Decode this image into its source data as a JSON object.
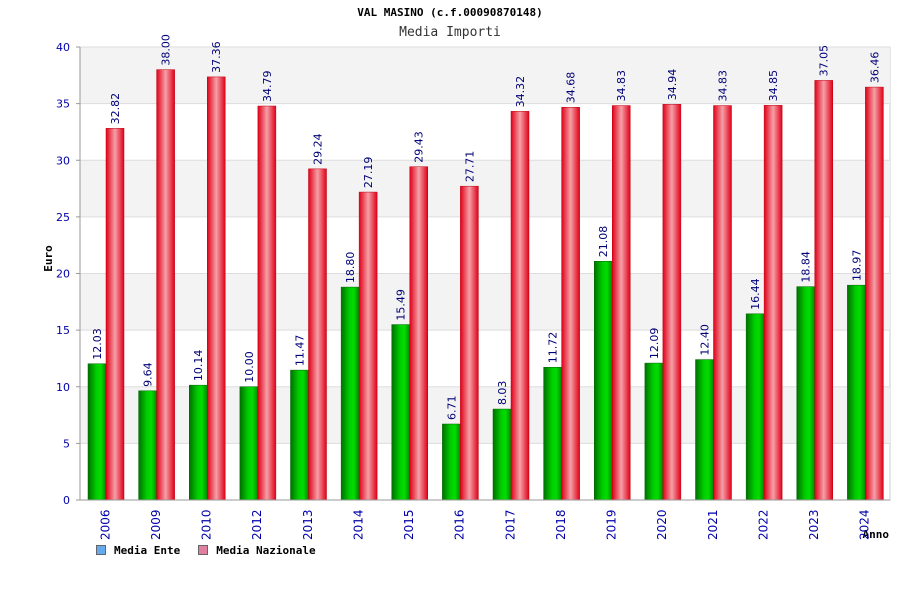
{
  "chart_data": {
    "type": "bar",
    "title": "VAL MASINO (c.f.00090870148)",
    "subtitle": "Media Importi",
    "xlabel": "Anno",
    "ylabel": "Euro",
    "ylim": [
      0,
      40
    ],
    "yticks": [
      0,
      5,
      10,
      15,
      20,
      25,
      30,
      35,
      40
    ],
    "grid": true,
    "legend_position": "bottom-left",
    "categories": [
      "2006",
      "2009",
      "2010",
      "2012",
      "2013",
      "2014",
      "2015",
      "2016",
      "2017",
      "2018",
      "2019",
      "2020",
      "2021",
      "2022",
      "2023",
      "2024"
    ],
    "series": [
      {
        "name": "Media Ente",
        "color": "#00a000",
        "legend_color": "#66aaee",
        "values": [
          12.03,
          9.64,
          10.14,
          10.0,
          11.47,
          18.8,
          15.49,
          6.71,
          8.03,
          11.72,
          21.08,
          12.09,
          12.4,
          16.44,
          18.84,
          18.97
        ],
        "labels": [
          "12.03",
          "9.64",
          "10.14",
          "10.00",
          "11.47",
          "18.80",
          "15.49",
          "6.71",
          "8.03",
          "11.72",
          "21.08",
          "12.09",
          "12.40",
          "16.44",
          "18.84",
          "18.97"
        ]
      },
      {
        "name": "Media Nazionale",
        "color": "#e8001c",
        "legend_color": "#e080a0",
        "values": [
          32.82,
          38.0,
          37.36,
          34.79,
          29.24,
          27.19,
          29.43,
          27.71,
          34.32,
          34.68,
          34.83,
          34.94,
          34.83,
          34.85,
          37.05,
          36.46
        ],
        "labels": [
          "32.82",
          "38.00",
          "37.36",
          "34.79",
          "29.24",
          "27.19",
          "29.43",
          "27.71",
          "34.32",
          "34.68",
          "34.83",
          "34.94",
          "34.83",
          "34.85",
          "37.05",
          "36.46"
        ]
      }
    ]
  }
}
